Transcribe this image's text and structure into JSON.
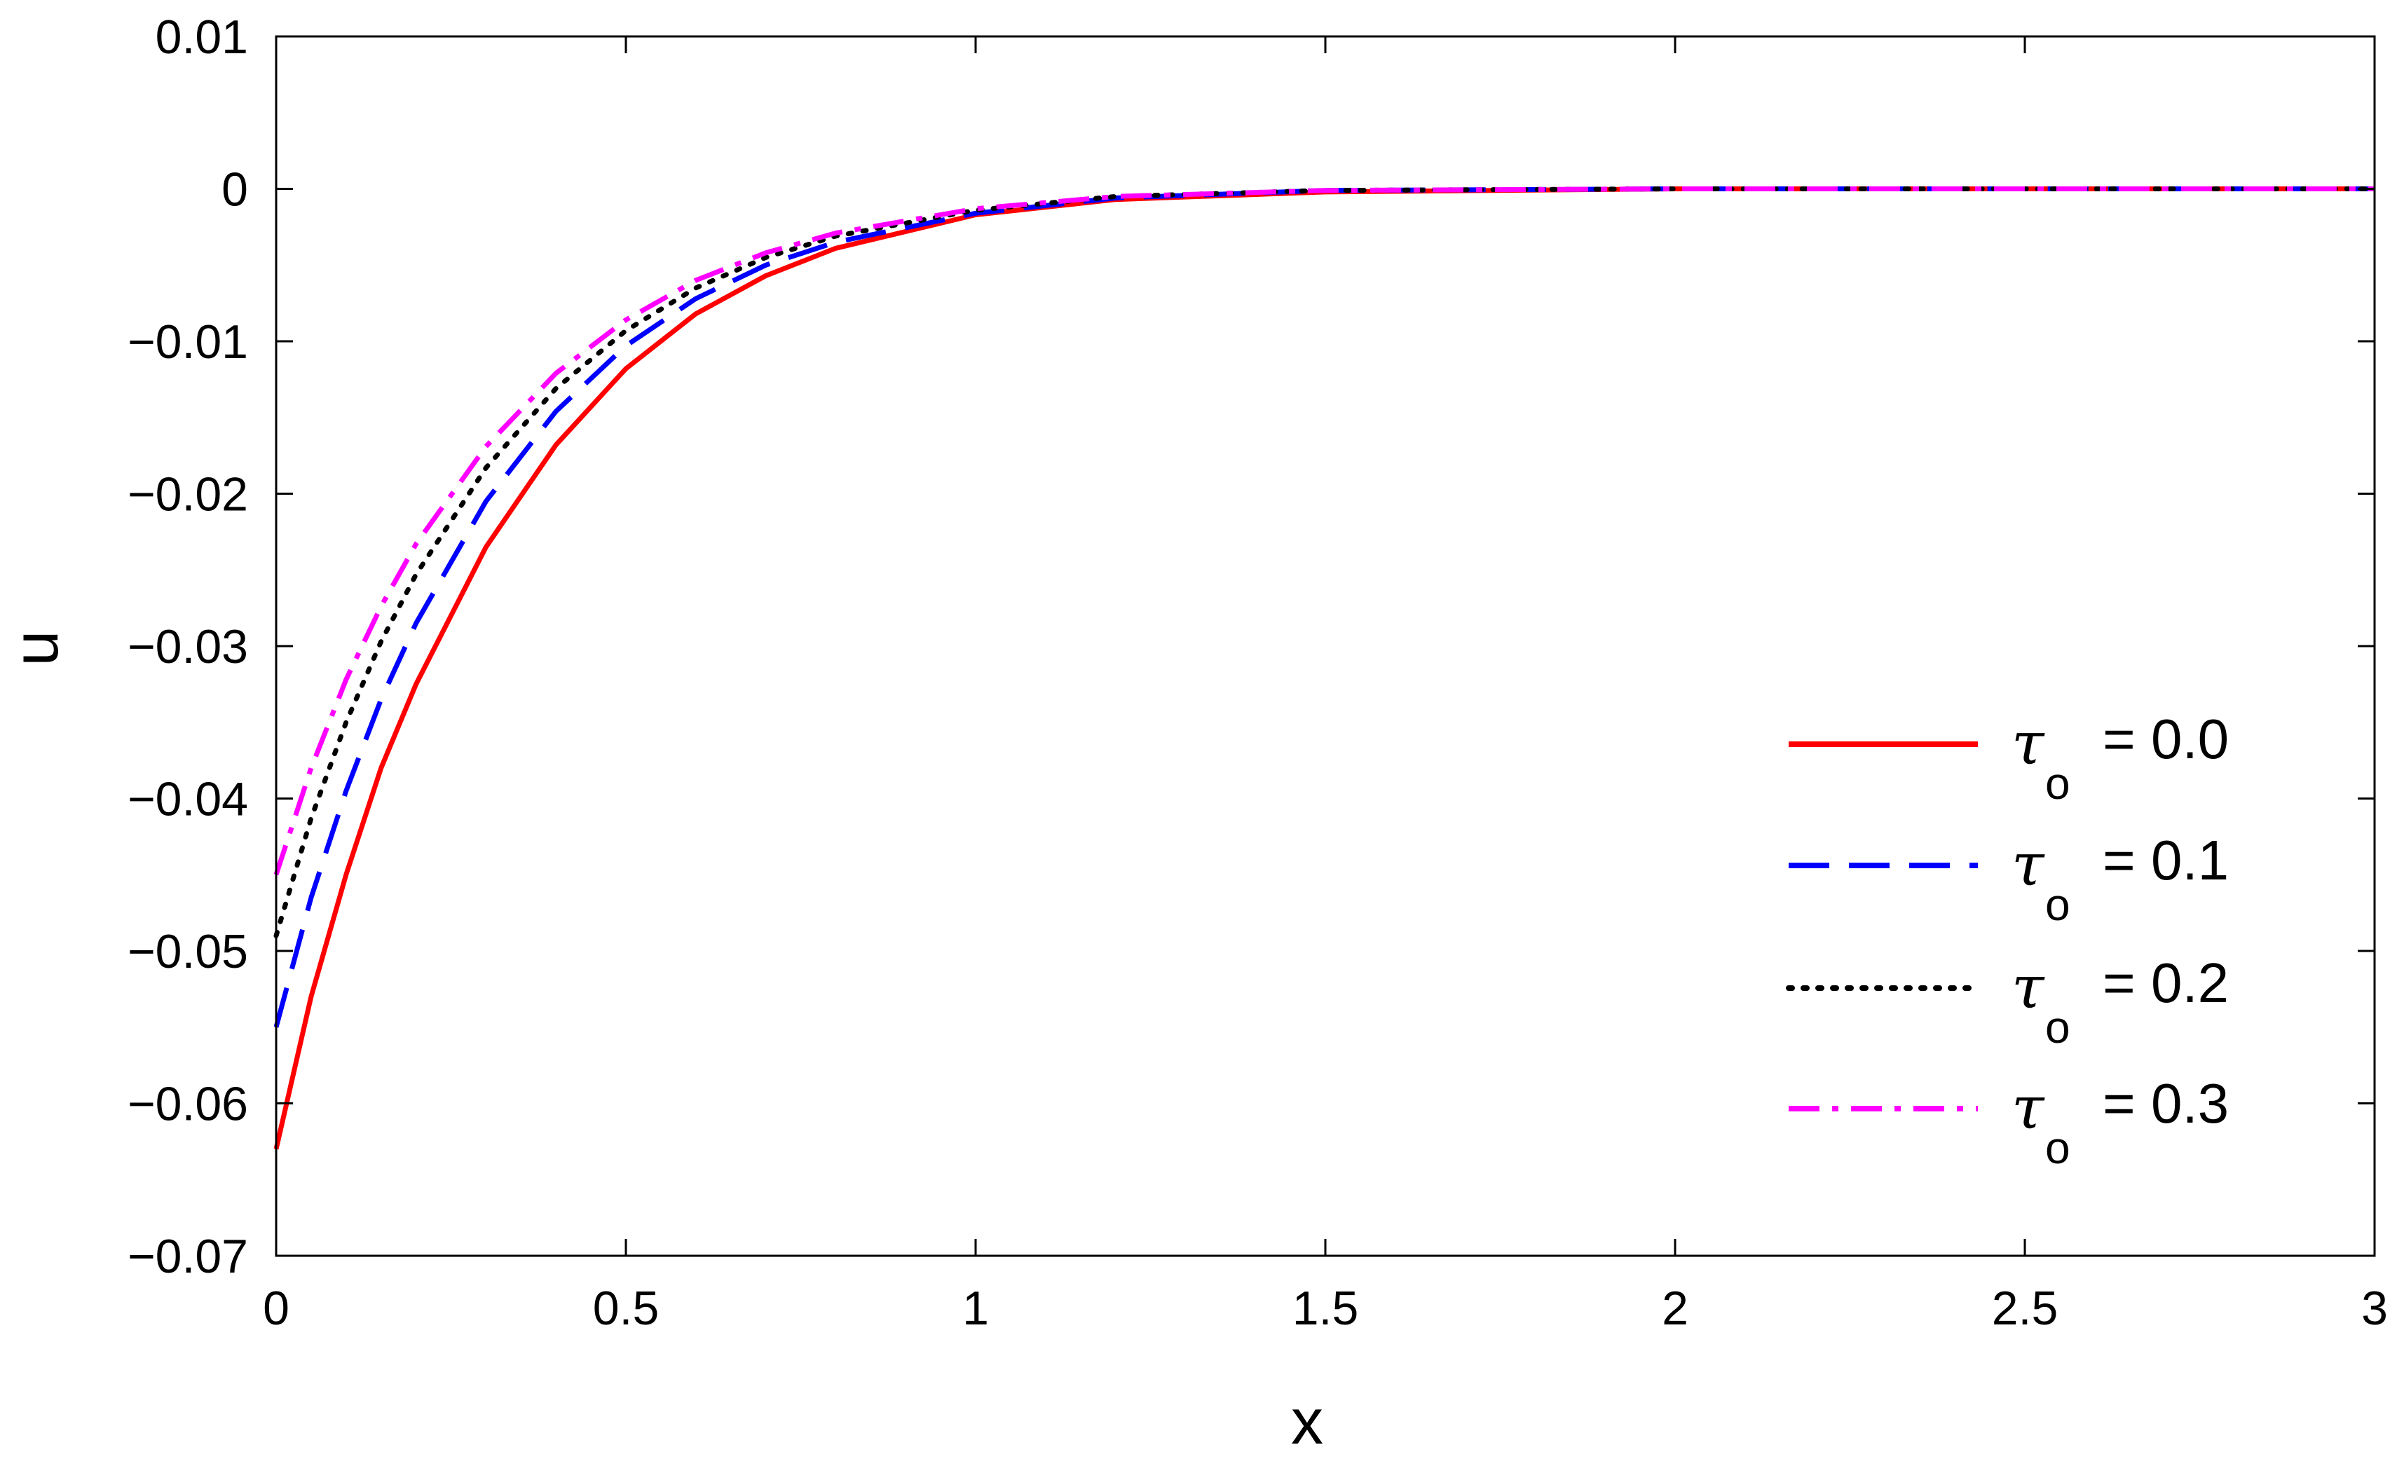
{
  "chart_data": {
    "type": "line",
    "title": "",
    "xlabel": "x",
    "ylabel": "u",
    "xlim": [
      0,
      3
    ],
    "ylim": [
      -0.07,
      0.01
    ],
    "x_ticks": [
      0,
      0.5,
      1,
      1.5,
      2,
      2.5,
      3
    ],
    "x_tick_labels": [
      "0",
      "0.5",
      "1",
      "1.5",
      "2",
      "2.5",
      "3"
    ],
    "y_ticks": [
      0.01,
      0,
      -0.01,
      -0.02,
      -0.03,
      -0.04,
      -0.05,
      -0.06,
      -0.07
    ],
    "y_tick_labels": [
      "0.01",
      "0",
      "−0.01",
      "−0.02",
      "−0.03",
      "−0.04",
      "−0.05",
      "−0.06",
      "−0.07"
    ],
    "grid": false,
    "legend_position": "right",
    "legend_symbol": "τ",
    "legend_subscript": "o",
    "series": [
      {
        "name": "= 0.0",
        "color": "#ff0000",
        "style": "solid",
        "x": [
          0,
          0.05,
          0.1,
          0.15,
          0.2,
          0.3,
          0.4,
          0.5,
          0.6,
          0.7,
          0.8,
          1.0,
          1.2,
          1.5,
          2.0,
          2.5,
          3.0
        ],
        "y": [
          -0.063,
          -0.053,
          -0.045,
          -0.038,
          -0.0325,
          -0.0235,
          -0.0168,
          -0.0118,
          -0.0082,
          -0.0057,
          -0.0039,
          -0.0017,
          -0.0007,
          -0.0002,
          0,
          0,
          0
        ]
      },
      {
        "name": "= 0.1",
        "color": "#0000ff",
        "style": "dashed",
        "x": [
          0,
          0.05,
          0.1,
          0.15,
          0.2,
          0.3,
          0.4,
          0.5,
          0.6,
          0.7,
          0.8,
          1.0,
          1.2,
          1.5,
          2.0,
          2.5,
          3.0
        ],
        "y": [
          -0.055,
          -0.0465,
          -0.0395,
          -0.0335,
          -0.0285,
          -0.0205,
          -0.0146,
          -0.0103,
          -0.0072,
          -0.005,
          -0.0035,
          -0.0016,
          -0.0006,
          -0.0001,
          0,
          0,
          0
        ]
      },
      {
        "name": "= 0.2",
        "color": "#000000",
        "style": "dotted",
        "x": [
          0,
          0.05,
          0.1,
          0.15,
          0.2,
          0.3,
          0.4,
          0.5,
          0.6,
          0.7,
          0.8,
          1.0,
          1.2,
          1.5,
          2.0,
          2.5,
          3.0
        ],
        "y": [
          -0.049,
          -0.0413,
          -0.035,
          -0.0297,
          -0.0253,
          -0.0183,
          -0.0131,
          -0.0093,
          -0.0065,
          -0.0045,
          -0.0031,
          -0.0014,
          -0.0005,
          -0.0001,
          0,
          0,
          0
        ]
      },
      {
        "name": "= 0.3",
        "color": "#ff00ff",
        "style": "dashdot",
        "x": [
          0,
          0.05,
          0.1,
          0.15,
          0.2,
          0.3,
          0.4,
          0.5,
          0.6,
          0.7,
          0.8,
          1.0,
          1.2,
          1.5,
          2.0,
          2.5,
          3.0
        ],
        "y": [
          -0.045,
          -0.038,
          -0.0322,
          -0.0274,
          -0.0233,
          -0.0169,
          -0.0121,
          -0.0086,
          -0.006,
          -0.0042,
          -0.0029,
          -0.0013,
          -0.0005,
          -0.0001,
          0,
          0,
          0
        ]
      }
    ]
  }
}
